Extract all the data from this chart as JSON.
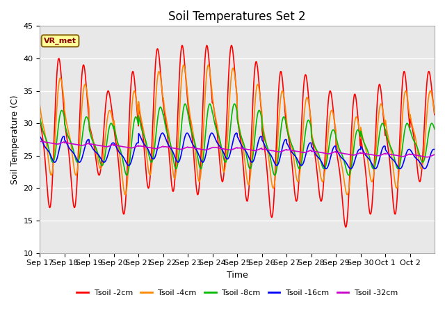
{
  "title": "Soil Temperatures Set 2",
  "xlabel": "Time",
  "ylabel": "Soil Temperature (C)",
  "ylim": [
    10,
    45
  ],
  "annotation": "VR_met",
  "plot_bg": "#e8e8e8",
  "fig_bg": "#ffffff",
  "grid_color": "#ffffff",
  "series": [
    {
      "label": "Tsoil -2cm",
      "color": "#ff0000"
    },
    {
      "label": "Tsoil -4cm",
      "color": "#ff8800"
    },
    {
      "label": "Tsoil -8cm",
      "color": "#00bb00"
    },
    {
      "label": "Tsoil -16cm",
      "color": "#0000ff"
    },
    {
      "label": "Tsoil -32cm",
      "color": "#cc00cc"
    }
  ],
  "xtick_labels": [
    "Sep 17",
    "Sep 18",
    "Sep 19",
    "Sep 20",
    "Sep 21",
    "Sep 22",
    "Sep 23",
    "Sep 24",
    "Sep 25",
    "Sep 26",
    "Sep 27",
    "Sep 28",
    "Sep 29",
    "Sep 30",
    "Oct 1",
    "Oct 2"
  ],
  "yticks": [
    10,
    15,
    20,
    25,
    30,
    35,
    40,
    45
  ],
  "title_fontsize": 12,
  "axis_label_fontsize": 9,
  "tick_fontsize": 8,
  "legend_fontsize": 8,
  "linewidth": 1.2
}
